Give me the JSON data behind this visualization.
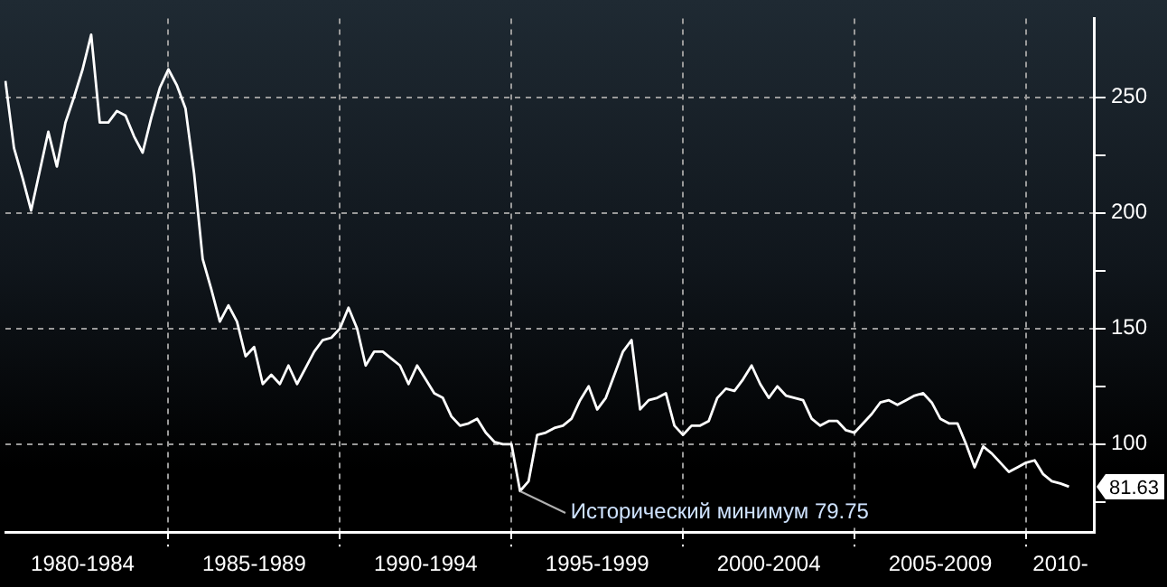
{
  "chart_data": {
    "type": "line",
    "categories": [
      null,
      null,
      null,
      null,
      null,
      null,
      null,
      null,
      null,
      "1980-1984",
      null,
      null,
      null,
      null,
      null,
      null,
      null,
      null,
      null,
      null,
      null,
      null,
      null,
      null,
      null,
      null,
      null,
      null,
      null,
      "1985-1989",
      null,
      null,
      null,
      null,
      null,
      null,
      null,
      null,
      null,
      null,
      null,
      null,
      null,
      null,
      null,
      null,
      null,
      null,
      null,
      "1990-1994",
      null,
      null,
      null,
      null,
      null,
      null,
      null,
      null,
      null,
      null,
      null,
      null,
      null,
      null,
      null,
      null,
      null,
      null,
      null,
      "1995-1999",
      null,
      null,
      null,
      null,
      null,
      null,
      null,
      null,
      null,
      null,
      null,
      null,
      null,
      null,
      null,
      null,
      null,
      null,
      null,
      "2000-2004",
      null,
      null,
      null,
      null,
      null,
      null,
      null,
      null,
      null,
      null,
      null,
      null,
      null,
      null,
      null,
      null,
      null,
      null,
      null,
      "2005-2009",
      null,
      null,
      null,
      null,
      null,
      null,
      null,
      null,
      null,
      null,
      null,
      null,
      null,
      "2010-",
      null,
      null,
      null,
      null
    ],
    "values": [
      257,
      228,
      215,
      201,
      218,
      235,
      220,
      239,
      250,
      262,
      277,
      239,
      239,
      244,
      242,
      233,
      226,
      241,
      254,
      262,
      255,
      245,
      217,
      180,
      167,
      153,
      160,
      153,
      138,
      142,
      126,
      130,
      126,
      134,
      126,
      133,
      140,
      145,
      146,
      150,
      159,
      150,
      134,
      140,
      140,
      137,
      134,
      126,
      134,
      128,
      122,
      120,
      112,
      108,
      109,
      111,
      105,
      101,
      100,
      100,
      79.75,
      84,
      104,
      105,
      107,
      108,
      111,
      119,
      125,
      115,
      120,
      130,
      140,
      145,
      115,
      119,
      120,
      122,
      108,
      104,
      108,
      108,
      110,
      120,
      124,
      123,
      128,
      134,
      126,
      120,
      125,
      121,
      120,
      119,
      111,
      108,
      110,
      110,
      106,
      105,
      109,
      113,
      118,
      119,
      117,
      119,
      121,
      122,
      118,
      111,
      109,
      109,
      100,
      90,
      99,
      96,
      92,
      88,
      90,
      92,
      93,
      87,
      84,
      83,
      81.63,
      null,
      null,
      null
    ],
    "color": "#ffffff",
    "ylim": [
      62,
      284
    ],
    "yticks": [
      {
        "value": 75,
        "label": null
      },
      100,
      {
        "value": 125,
        "label": null
      },
      150,
      {
        "value": 175,
        "label": null
      },
      200,
      {
        "value": 225,
        "label": null
      },
      250
    ],
    "grid": true,
    "annotations": [
      "Исторический минимум 79.75",
      "81.63"
    ]
  }
}
